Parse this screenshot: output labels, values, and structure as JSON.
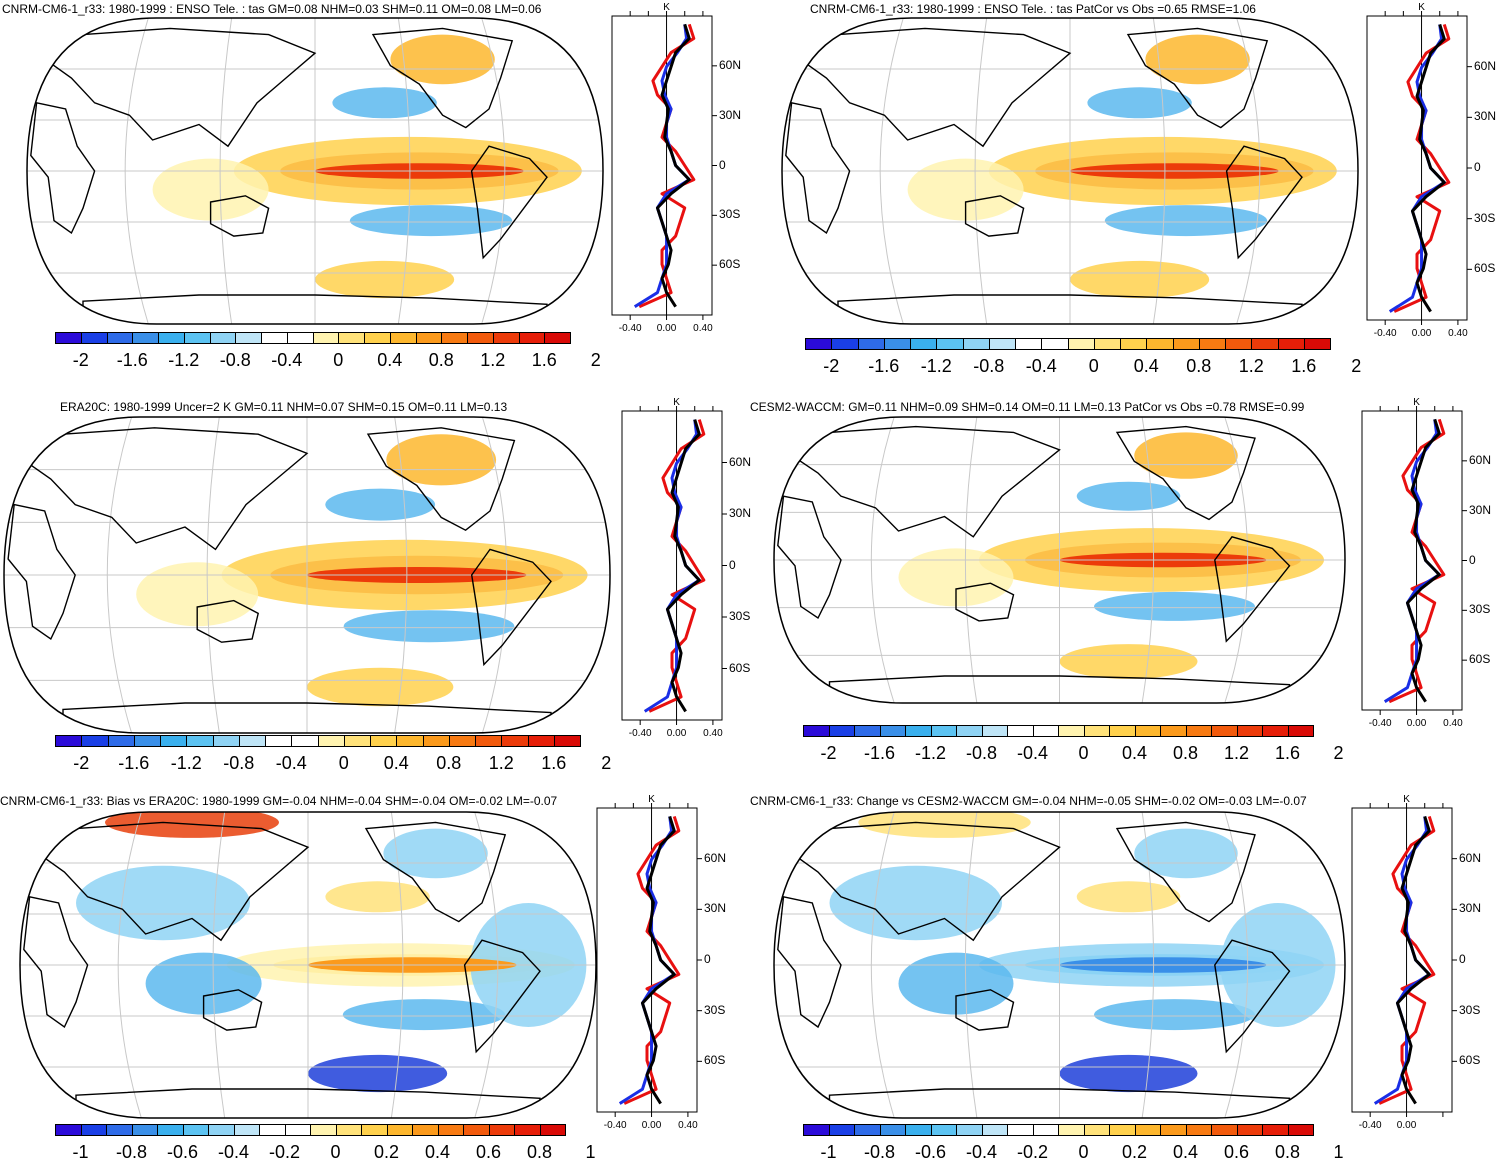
{
  "panels": [
    {
      "title": "CNRM-CM6-1_r33: 1980-1999 : ENSO Tele. : tas GM=0.08 NHM=0.03 SHM=0.11 OM=0.08 LM=0.06",
      "colorbar_ticks": [
        "-2",
        "-1.6",
        "-1.2",
        "-0.8",
        "-0.4",
        "0",
        "0.4",
        "0.8",
        "1.2",
        "1.6",
        "2"
      ],
      "profile_unit": "K",
      "profile_lat_labels": [
        "60N",
        "30N",
        "0",
        "30S",
        "60S"
      ],
      "profile_x_ticks": [
        "-0.40",
        "0.00",
        "0.40"
      ]
    },
    {
      "title": "CNRM-CM6-1_r33: 1980-1999 : ENSO Tele. : tas PatCor vs Obs =0.65 RMSE=1.06",
      "colorbar_ticks": [
        "-2",
        "-1.6",
        "-1.2",
        "-0.8",
        "-0.4",
        "0",
        "0.4",
        "0.8",
        "1.2",
        "1.6",
        "2"
      ],
      "profile_unit": "K",
      "profile_lat_labels": [
        "60N",
        "30N",
        "0",
        "30S",
        "60S"
      ],
      "profile_x_ticks": [
        "-0.40",
        "0.00",
        "0.40"
      ]
    },
    {
      "title": "ERA20C: 1980-1999 Uncer=2 K GM=0.11 NHM=0.07 SHM=0.15 OM=0.11 LM=0.13",
      "colorbar_ticks": [
        "-2",
        "-1.6",
        "-1.2",
        "-0.8",
        "-0.4",
        "0",
        "0.4",
        "0.8",
        "1.2",
        "1.6",
        "2"
      ],
      "profile_unit": "K",
      "profile_lat_labels": [
        "60N",
        "30N",
        "0",
        "30S",
        "60S"
      ],
      "profile_x_ticks": [
        "-0.40",
        "0.00",
        "0.40"
      ]
    },
    {
      "title": "CESM2-WACCM: GM=0.11 NHM=0.09 SHM=0.14 OM=0.11 LM=0.13 PatCor vs Obs =0.78 RMSE=0.99",
      "colorbar_ticks": [
        "-2",
        "-1.6",
        "-1.2",
        "-0.8",
        "-0.4",
        "0",
        "0.4",
        "0.8",
        "1.2",
        "1.6",
        "2"
      ],
      "profile_unit": "K",
      "profile_lat_labels": [
        "60N",
        "30N",
        "0",
        "30S",
        "60S"
      ],
      "profile_x_ticks": [
        "-0.40",
        "0.00",
        "0.40"
      ]
    },
    {
      "title": "CNRM-CM6-1_r33: Bias vs ERA20C: 1980-1999 GM=-0.04 NHM=-0.04 SHM=-0.04 OM=-0.02 LM=-0.07",
      "colorbar_ticks": [
        "-1",
        "-0.8",
        "-0.6",
        "-0.4",
        "-0.2",
        "0",
        "0.2",
        "0.4",
        "0.6",
        "0.8",
        "1"
      ],
      "profile_unit": "K",
      "profile_lat_labels": [
        "60N",
        "30N",
        "0",
        "30S",
        "60S"
      ],
      "profile_x_ticks": [
        "-0.40",
        "0.00",
        "0.40"
      ]
    },
    {
      "title": "CNRM-CM6-1_r33: Change vs CESM2-WACCM GM=-0.04 NHM=-0.05 SHM=-0.02 OM=-0.03 LM=-0.07",
      "colorbar_ticks": [
        "-1",
        "-0.8",
        "-0.6",
        "-0.4",
        "-0.2",
        "0",
        "0.2",
        "0.4",
        "0.6",
        "0.8",
        "1"
      ],
      "profile_unit": "K",
      "profile_lat_labels": [
        "60N",
        "30N",
        "0",
        "30S",
        "60S"
      ],
      "profile_x_ticks": [
        "-0.40",
        "0.00"
      ]
    }
  ],
  "colors": {
    "palette": [
      "#2b0bd9",
      "#1a3fe6",
      "#2e6be8",
      "#3a8fe8",
      "#3ab0ee",
      "#5cc3f2",
      "#8fd3f4",
      "#bfe5f7",
      "#ffffff",
      "#ffffff",
      "#fff3b0",
      "#ffe27a",
      "#ffd14d",
      "#fdb72e",
      "#fb9a1c",
      "#f77a12",
      "#f25a0c",
      "#ec3b0a",
      "#e61e08",
      "#d90a06"
    ],
    "warm": "#f7a21b",
    "cool": "#5cb8ee",
    "strong_warm": "#e8400c",
    "strong_cool": "#1f3fd9",
    "profile_model": "#000000",
    "profile_red": "#e81010",
    "profile_blue": "#1a2ee6",
    "grid": "#c8c8c8"
  },
  "legend_note": ""
}
